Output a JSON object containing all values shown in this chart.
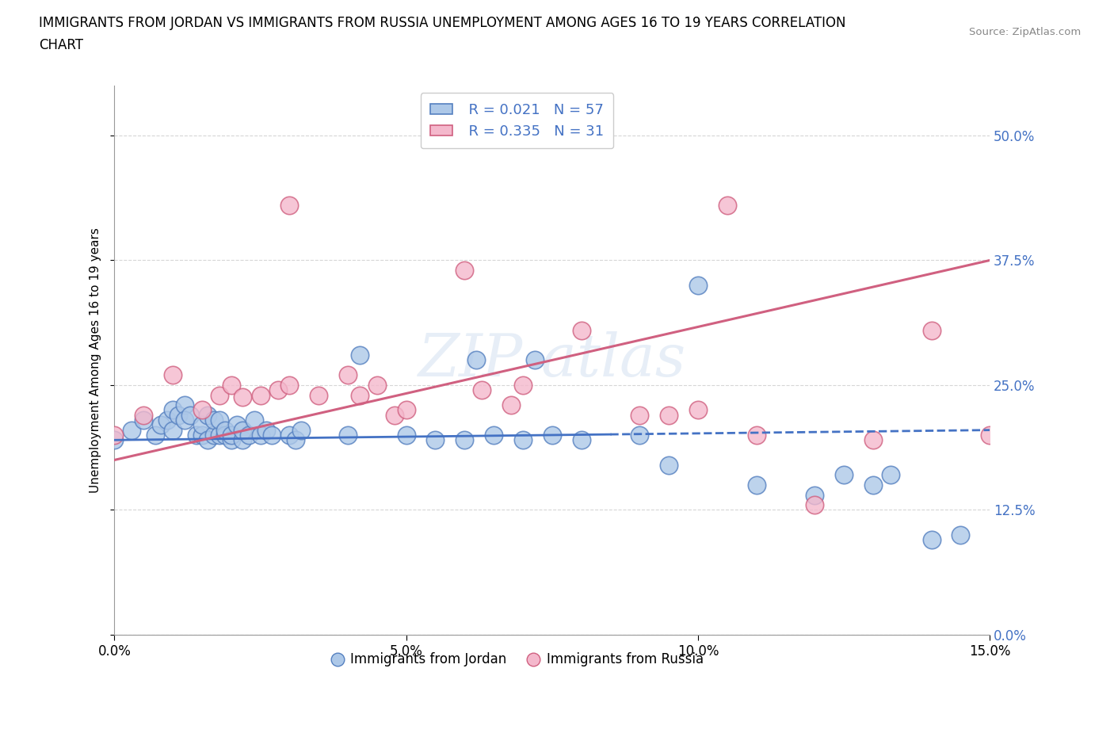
{
  "title_line1": "IMMIGRANTS FROM JORDAN VS IMMIGRANTS FROM RUSSIA UNEMPLOYMENT AMONG AGES 16 TO 19 YEARS CORRELATION",
  "title_line2": "CHART",
  "source_text": "Source: ZipAtlas.com",
  "ylabel": "Unemployment Among Ages 16 to 19 years",
  "xlim": [
    0.0,
    0.15
  ],
  "ylim": [
    0.0,
    0.55
  ],
  "yticks": [
    0.0,
    0.125,
    0.25,
    0.375,
    0.5
  ],
  "yticklabels": [
    "0.0%",
    "12.5%",
    "25.0%",
    "37.5%",
    "50.0%"
  ],
  "xticks": [
    0.0,
    0.05,
    0.1,
    0.15
  ],
  "xticklabels": [
    "0.0%",
    "5.0%",
    "10.0%",
    "15.0%"
  ],
  "jordan_R": 0.021,
  "jordan_N": 57,
  "russia_R": 0.335,
  "russia_N": 31,
  "jordan_color": "#adc8e8",
  "russia_color": "#f4b8cc",
  "jordan_edge_color": "#5580c0",
  "russia_edge_color": "#d06080",
  "jordan_line_color": "#4472c4",
  "russia_line_color": "#d06080",
  "tick_label_color": "#4472c4",
  "jordan_x": [
    0.0,
    0.003,
    0.005,
    0.007,
    0.008,
    0.009,
    0.01,
    0.01,
    0.011,
    0.012,
    0.012,
    0.013,
    0.014,
    0.015,
    0.015,
    0.016,
    0.016,
    0.017,
    0.017,
    0.018,
    0.018,
    0.019,
    0.019,
    0.02,
    0.02,
    0.021,
    0.022,
    0.022,
    0.023,
    0.024,
    0.025,
    0.026,
    0.027,
    0.03,
    0.031,
    0.032,
    0.04,
    0.042,
    0.05,
    0.055,
    0.06,
    0.062,
    0.065,
    0.07,
    0.072,
    0.075,
    0.08,
    0.09,
    0.095,
    0.1,
    0.11,
    0.12,
    0.125,
    0.13,
    0.133,
    0.14,
    0.145
  ],
  "jordan_y": [
    0.195,
    0.205,
    0.215,
    0.2,
    0.21,
    0.215,
    0.205,
    0.225,
    0.22,
    0.23,
    0.215,
    0.22,
    0.2,
    0.2,
    0.21,
    0.195,
    0.22,
    0.2,
    0.215,
    0.2,
    0.215,
    0.2,
    0.205,
    0.195,
    0.2,
    0.21,
    0.195,
    0.205,
    0.2,
    0.215,
    0.2,
    0.205,
    0.2,
    0.2,
    0.195,
    0.205,
    0.2,
    0.28,
    0.2,
    0.195,
    0.195,
    0.275,
    0.2,
    0.195,
    0.275,
    0.2,
    0.195,
    0.2,
    0.17,
    0.35,
    0.15,
    0.14,
    0.16,
    0.15,
    0.16,
    0.095,
    0.1
  ],
  "russia_x": [
    0.0,
    0.005,
    0.01,
    0.015,
    0.018,
    0.02,
    0.022,
    0.025,
    0.028,
    0.03,
    0.03,
    0.035,
    0.04,
    0.042,
    0.045,
    0.048,
    0.05,
    0.06,
    0.063,
    0.068,
    0.07,
    0.08,
    0.09,
    0.095,
    0.1,
    0.105,
    0.11,
    0.12,
    0.13,
    0.14,
    0.15
  ],
  "russia_y": [
    0.2,
    0.22,
    0.26,
    0.225,
    0.24,
    0.25,
    0.238,
    0.24,
    0.245,
    0.43,
    0.25,
    0.24,
    0.26,
    0.24,
    0.25,
    0.22,
    0.225,
    0.365,
    0.245,
    0.23,
    0.25,
    0.305,
    0.22,
    0.22,
    0.225,
    0.43,
    0.2,
    0.13,
    0.195,
    0.305,
    0.2
  ],
  "jordan_trend_x0": 0.0,
  "jordan_trend_x1": 0.15,
  "jordan_trend_y0": 0.195,
  "jordan_trend_y1": 0.205,
  "russia_trend_x0": 0.0,
  "russia_trend_x1": 0.15,
  "russia_trend_y0": 0.175,
  "russia_trend_y1": 0.375
}
